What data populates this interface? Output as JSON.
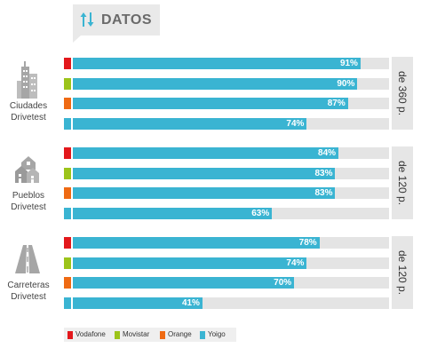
{
  "tag": {
    "label": "DATOS",
    "icon": "up-down-arrows-icon"
  },
  "colors": {
    "Vodafone": "#e3181c",
    "Movistar": "#9cc41a",
    "Orange": "#ef6a13",
    "Yoigo": "#3ab4d2",
    "track": "#e4e4e4"
  },
  "chart_data": {
    "type": "bar",
    "orientation": "horizontal",
    "xlim": [
      0,
      100
    ],
    "legend_position": "bottom-left",
    "series_names": [
      "Vodafone",
      "Movistar",
      "Orange",
      "Yoigo"
    ],
    "groups": [
      {
        "label_line1": "Ciudades",
        "label_line2": "Drivetest",
        "badge": "de 360 p.",
        "icon": "city-buildings-icon",
        "values": [
          91,
          90,
          87,
          74
        ],
        "labels": [
          "91%",
          "90%",
          "87%",
          "74%"
        ]
      },
      {
        "label_line1": "Pueblos",
        "label_line2": "Drivetest",
        "badge": "de 120 p.",
        "icon": "town-houses-icon",
        "values": [
          84,
          83,
          83,
          63
        ],
        "labels": [
          "84%",
          "83%",
          "83%",
          "63%"
        ]
      },
      {
        "label_line1": "Carreteras",
        "label_line2": "Drivetest",
        "badge": "de 120 p.",
        "icon": "road-icon",
        "values": [
          78,
          74,
          70,
          41
        ],
        "labels": [
          "78%",
          "74%",
          "70%",
          "41%"
        ]
      }
    ]
  },
  "legend": [
    {
      "name": "Vodafone",
      "color": "#e3181c"
    },
    {
      "name": "Movistar",
      "color": "#9cc41a"
    },
    {
      "name": "Orange",
      "color": "#ef6a13"
    },
    {
      "name": "Yoigo",
      "color": "#3ab4d2"
    }
  ]
}
